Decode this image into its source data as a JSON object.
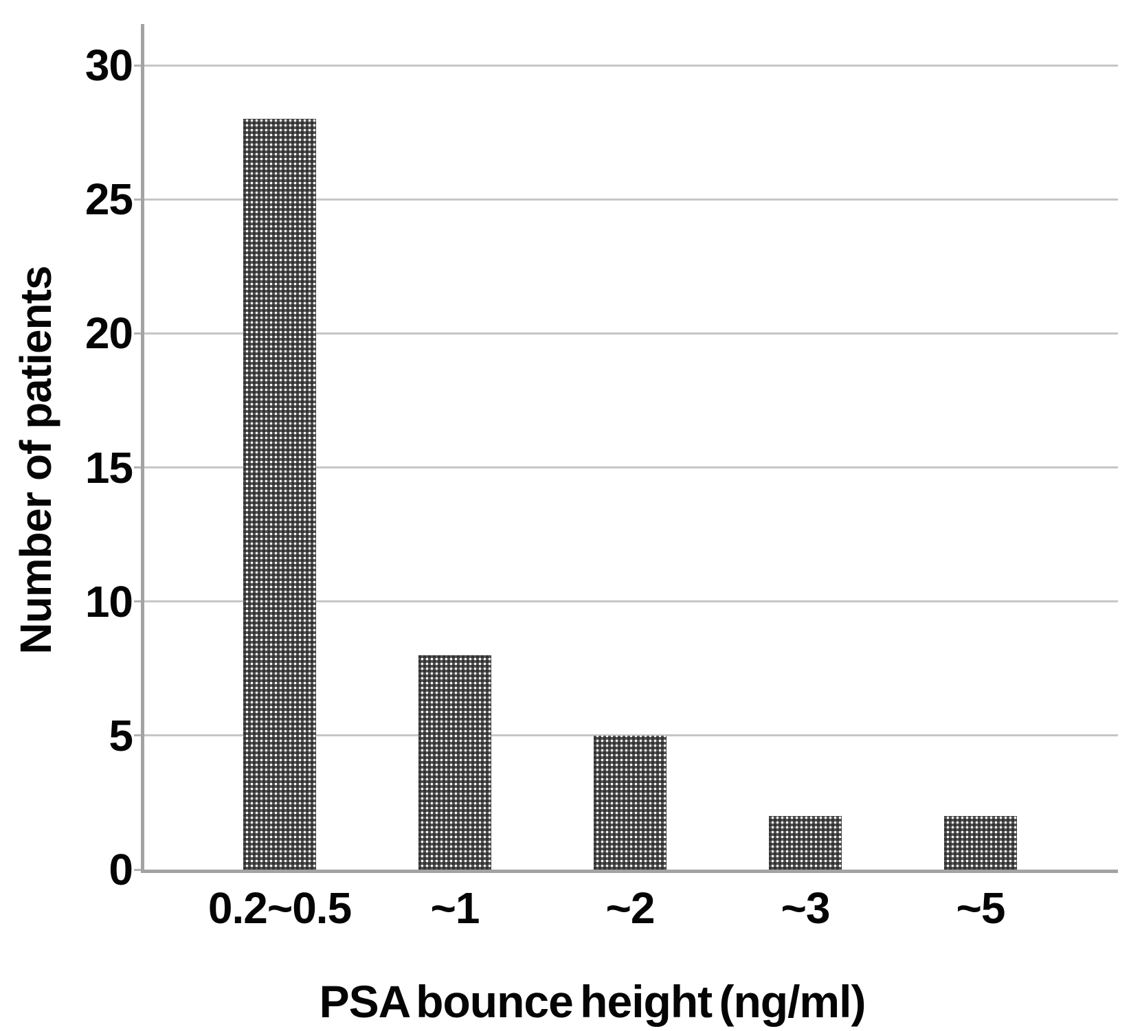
{
  "chart_data": {
    "type": "bar",
    "title": "",
    "xlabel": "PSA bounce height (ng/ml)",
    "ylabel": "Number of patients",
    "categories": [
      "0.2~0.5",
      "~1",
      "~2",
      "~3",
      "~5"
    ],
    "values": [
      28,
      8,
      5,
      2,
      2
    ],
    "series": [
      {
        "name": "Number of patients",
        "values": [
          28,
          8,
          5,
          2,
          2
        ]
      }
    ],
    "yticks": [
      0,
      5,
      10,
      15,
      20,
      25,
      30
    ],
    "ylim": [
      0,
      31.5
    ],
    "grid": "horizontal-gridlines-on",
    "legend": "none",
    "bar_fill": "checkered-pattern",
    "colors": {
      "bar_pattern_dark": "#2a2a2a",
      "bar_pattern_light": "#ffffff",
      "gridline": "#c6c6c6",
      "axis_line": "#a3a3a3",
      "text": "#050505",
      "background": "#ffffff"
    }
  }
}
